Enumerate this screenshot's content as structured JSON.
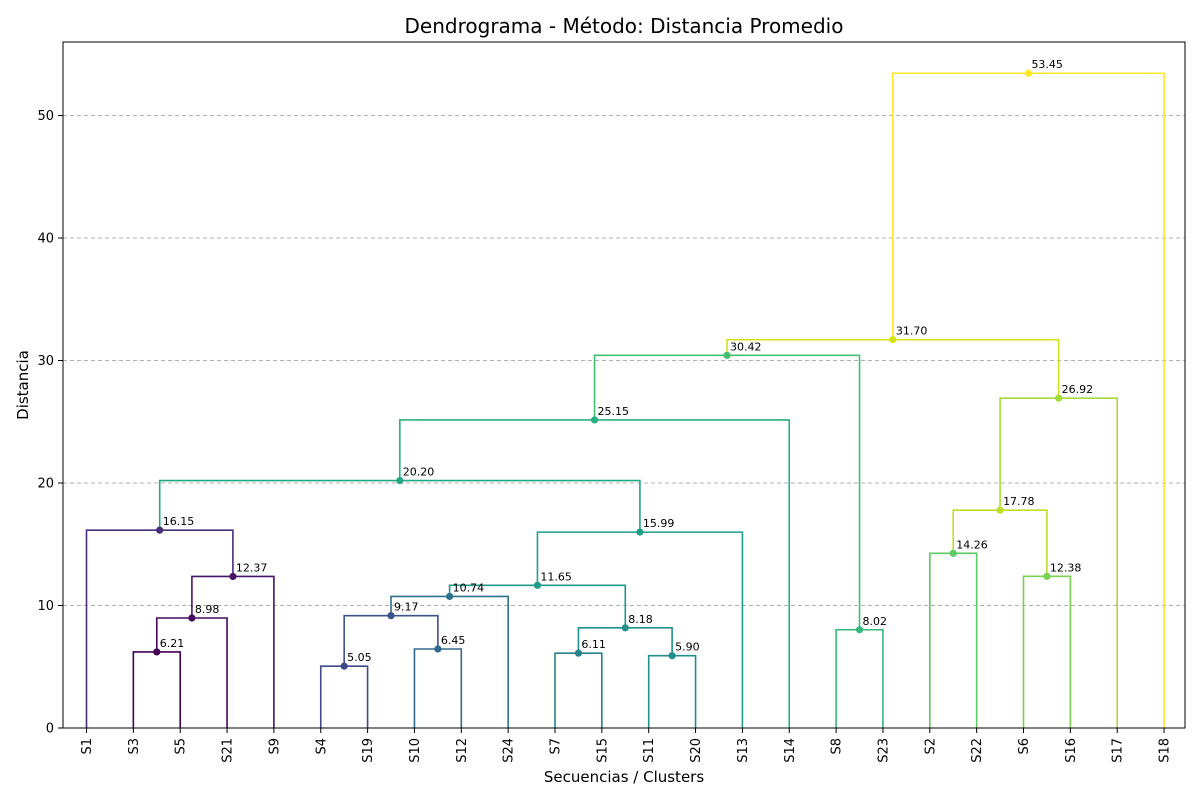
{
  "chart_data": {
    "type": "dendrogram",
    "title": "Dendrograma - Método: Distancia Promedio",
    "xlabel": "Secuencias / Clusters",
    "ylabel": "Distancia",
    "ylim": [
      0,
      56
    ],
    "yticks": [
      0,
      10,
      20,
      30,
      40,
      50
    ],
    "grid": "horizontal-dashed",
    "leaves": [
      "S1",
      "S3",
      "S5",
      "S21",
      "S9",
      "S4",
      "S19",
      "S10",
      "S12",
      "S24",
      "S7",
      "S15",
      "S11",
      "S20",
      "S13",
      "S14",
      "S8",
      "S23",
      "S2",
      "S22",
      "S6",
      "S16",
      "S17",
      "S18"
    ],
    "merges": [
      {
        "left": "S3",
        "right": "S5",
        "height": 6.21,
        "label": "6.21",
        "color": "#440154"
      },
      {
        "left": "n0",
        "right": "S21",
        "height": 8.98,
        "label": "8.98",
        "color": "#46085c"
      },
      {
        "left": "n1",
        "right": "S9",
        "height": 12.37,
        "label": "12.37",
        "color": "#471365"
      },
      {
        "left": "S1",
        "right": "n2",
        "height": 16.15,
        "label": "16.15",
        "color": "#472d7b"
      },
      {
        "left": "S4",
        "right": "S19",
        "height": 5.05,
        "label": "5.05",
        "color": "#3e4a89"
      },
      {
        "left": "S10",
        "right": "S12",
        "height": 6.45,
        "label": "6.45",
        "color": "#31688e"
      },
      {
        "left": "n4",
        "right": "n5",
        "height": 9.17,
        "label": "9.17",
        "color": "#3b528b"
      },
      {
        "left": "n6",
        "right": "S24",
        "height": 10.74,
        "label": "10.74",
        "color": "#2c718e"
      },
      {
        "left": "S7",
        "right": "S15",
        "height": 6.11,
        "label": "6.11",
        "color": "#26828e"
      },
      {
        "left": "S11",
        "right": "S20",
        "height": 5.9,
        "label": "5.90",
        "color": "#21908d"
      },
      {
        "left": "n8",
        "right": "n9",
        "height": 8.18,
        "label": "8.18",
        "color": "#21918c"
      },
      {
        "left": "n7",
        "right": "n10",
        "height": 11.65,
        "label": "11.65",
        "color": "#1f9a8a"
      },
      {
        "left": "n11",
        "right": "S13",
        "height": 15.99,
        "label": "15.99",
        "color": "#1fa088"
      },
      {
        "left": "n3",
        "right": "n12",
        "height": 20.2,
        "label": "20.20",
        "color": "#22a884"
      },
      {
        "left": "n13",
        "right": "S14",
        "height": 25.15,
        "label": "25.15",
        "color": "#2ab07f"
      },
      {
        "left": "S8",
        "right": "S23",
        "height": 8.02,
        "label": "8.02",
        "color": "#35b779"
      },
      {
        "left": "n14",
        "right": "n15",
        "height": 30.42,
        "label": "30.42",
        "color": "#44bf70"
      },
      {
        "left": "S2",
        "right": "S22",
        "height": 14.26,
        "label": "14.26",
        "color": "#5ec962"
      },
      {
        "left": "S6",
        "right": "S16",
        "height": 12.38,
        "label": "12.38",
        "color": "#7ad151"
      },
      {
        "left": "n17",
        "right": "n18",
        "height": 17.78,
        "label": "17.78",
        "color": "#bddf26"
      },
      {
        "left": "n19",
        "right": "S17",
        "height": 26.92,
        "label": "26.92",
        "color": "#a5db36"
      },
      {
        "left": "n16",
        "right": "n20",
        "height": 31.7,
        "label": "31.70",
        "color": "#d2e21b"
      },
      {
        "left": "n21",
        "right": "S18",
        "height": 53.45,
        "label": "53.45",
        "color": "#fde725"
      }
    ]
  }
}
